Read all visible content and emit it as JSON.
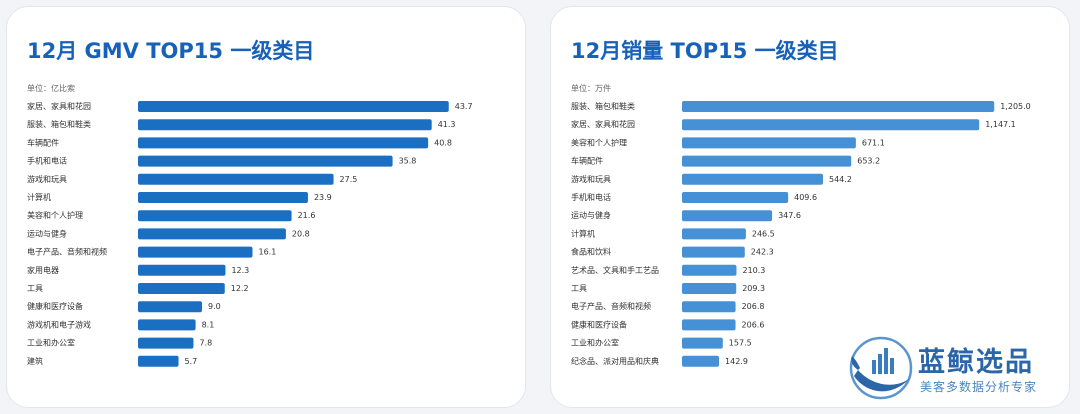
{
  "chart_data": [
    {
      "type": "bar",
      "orientation": "horizontal",
      "title": "12月 GMV TOP15 一级类目",
      "unit": "单位：亿比索",
      "color": "#1b6fc2",
      "xlim": [
        0,
        45
      ],
      "categories": [
        "家居、家具和花园",
        "服装、箱包和鞋类",
        "车辆配件",
        "手机和电话",
        "游戏和玩具",
        "计算机",
        "美容和个人护理",
        "运动与健身",
        "电子产品、音频和视频",
        "家用电器",
        "工具",
        "健康和医疗设备",
        "游戏机和电子游戏",
        "工业和办公室",
        "建筑"
      ],
      "values": [
        43.7,
        41.3,
        40.8,
        35.8,
        27.5,
        23.9,
        21.6,
        20.8,
        16.1,
        12.3,
        12.2,
        9.0,
        8.1,
        7.8,
        5.7
      ],
      "value_labels": [
        "43.7",
        "41.3",
        "40.8",
        "35.8",
        "27.5",
        "23.9",
        "21.6",
        "20.8",
        "16.1",
        "12.3",
        "12.2",
        "9.0",
        "8.1",
        "7.8",
        "5.7"
      ]
    },
    {
      "type": "bar",
      "orientation": "horizontal",
      "title": "12月销量 TOP15 一级类目",
      "unit": "单位：万件",
      "color": "#4690d6",
      "xlim": [
        0,
        1235
      ],
      "categories": [
        "服装、箱包和鞋类",
        "家居、家具和花园",
        "美容和个人护理",
        "车辆配件",
        "游戏和玩具",
        "手机和电话",
        "运动与健身",
        "计算机",
        "食品和饮料",
        "艺术品、文具和手工艺品",
        "工具",
        "电子产品、音频和视频",
        "健康和医疗设备",
        "工业和办公室",
        "纪念品、派对用品和庆典"
      ],
      "values": [
        1205.0,
        1147.1,
        671.1,
        653.2,
        544.2,
        409.6,
        347.6,
        246.5,
        242.3,
        210.3,
        209.3,
        206.8,
        206.6,
        157.5,
        142.9
      ],
      "value_labels": [
        "1,205.0",
        "1,147.1",
        "671.1",
        "653.2",
        "544.2",
        "409.6",
        "347.6",
        "246.5",
        "242.3",
        "210.3",
        "209.3",
        "206.8",
        "206.6",
        "157.5",
        "142.9"
      ]
    }
  ],
  "logo": {
    "name": "蓝鲸选品",
    "slogan": "美客多数据分析专家",
    "icon": "whale-logo-icon",
    "color": "#2a66a8"
  }
}
